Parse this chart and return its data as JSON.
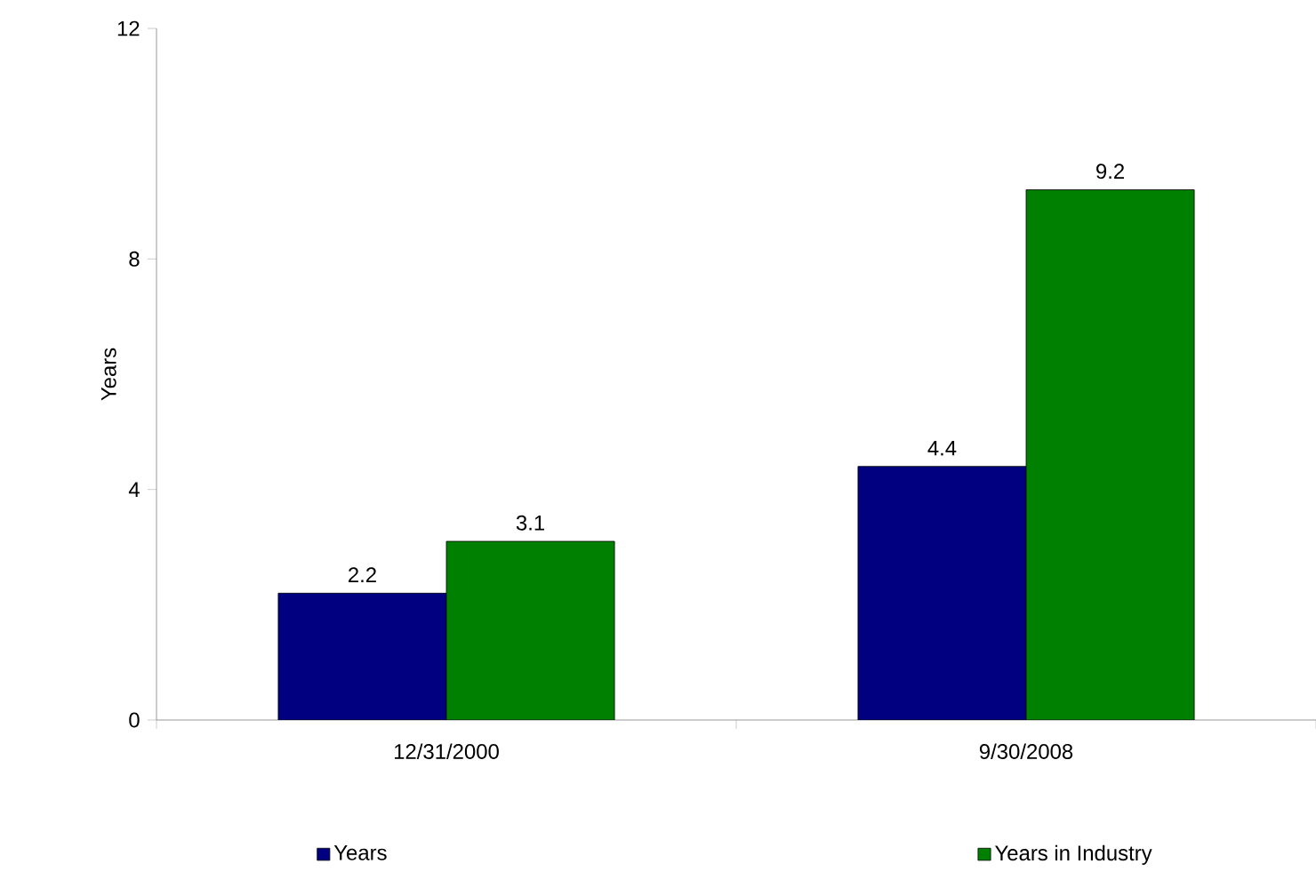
{
  "chart_data": {
    "type": "bar",
    "ylabel": "Years",
    "categories": [
      "12/31/2000",
      "9/30/2008"
    ],
    "series": [
      {
        "name": "Years",
        "color": "#000080",
        "values": [
          2.2,
          4.4
        ]
      },
      {
        "name": "Years in Industry",
        "color": "#008000",
        "values": [
          3.1,
          9.2
        ]
      }
    ],
    "ylim": [
      0,
      12
    ],
    "yticks": [
      0,
      4,
      8,
      12
    ],
    "data_labels": true,
    "legend": "bottom"
  }
}
